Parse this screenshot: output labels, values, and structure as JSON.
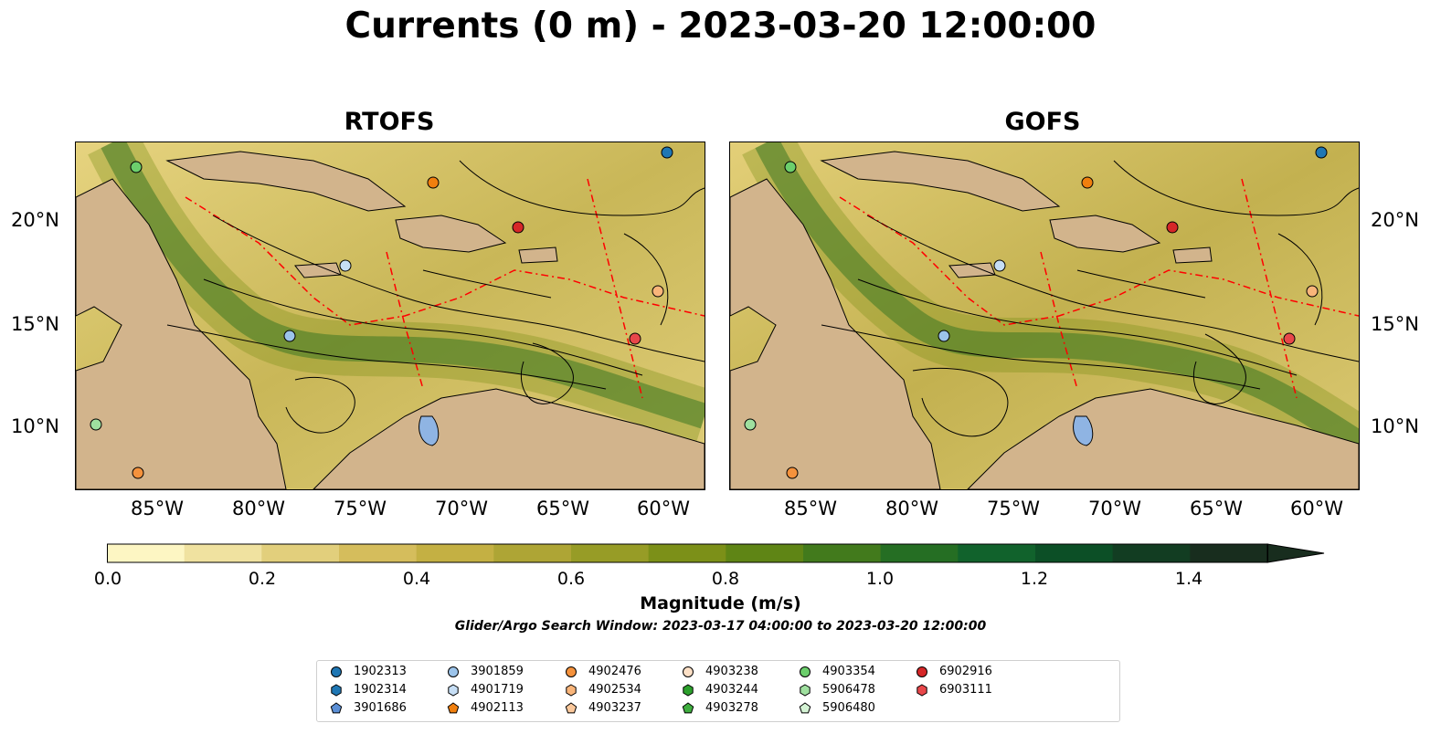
{
  "title": "Currents (0 m) - 2023-03-20 12:00:00",
  "panels": [
    {
      "title": "RTOFS"
    },
    {
      "title": "GOFS"
    }
  ],
  "lat_labels": [
    "20°N",
    "15°N",
    "10°N"
  ],
  "lon_labels": [
    "85°W",
    "80°W",
    "75°W",
    "70°W",
    "65°W",
    "60°W"
  ],
  "colorbar": {
    "label": "Magnitude (m/s)",
    "ticks": [
      "0.0",
      "0.2",
      "0.4",
      "0.6",
      "0.8",
      "1.0",
      "1.2",
      "1.4"
    ],
    "min": 0.0,
    "max": 1.5,
    "extend": "max",
    "colors": [
      "#fdf6c3",
      "#f0e2a0",
      "#e2cf7c",
      "#d5bd5c",
      "#c4b043",
      "#aea535",
      "#979c26",
      "#7c9018",
      "#5f8515",
      "#427a1c",
      "#256e23",
      "#11622c",
      "#0c4f26",
      "#123d22",
      "#182d1e"
    ]
  },
  "search_window": "Glider/Argo Search Window: 2023-03-17 04:00:00 to 2023-03-20 12:00:00",
  "legend": [
    {
      "id": "1902313",
      "marker": "circle",
      "color": "#1f77b4"
    },
    {
      "id": "1902314",
      "marker": "hexagon",
      "color": "#1f77b4"
    },
    {
      "id": "3901686",
      "marker": "pentagon",
      "color": "#5b8fd6"
    },
    {
      "id": "3901859",
      "marker": "circle",
      "color": "#9cc4eb"
    },
    {
      "id": "4901719",
      "marker": "hexagon",
      "color": "#c6def5"
    },
    {
      "id": "4902113",
      "marker": "pentagon",
      "color": "#f07f0e"
    },
    {
      "id": "4902476",
      "marker": "circle",
      "color": "#f5923c"
    },
    {
      "id": "4902534",
      "marker": "hexagon",
      "color": "#f9b57a"
    },
    {
      "id": "4903237",
      "marker": "pentagon",
      "color": "#fbc89b"
    },
    {
      "id": "4903238",
      "marker": "circle",
      "color": "#fde0c6"
    },
    {
      "id": "4903244",
      "marker": "hexagon",
      "color": "#2ca02c"
    },
    {
      "id": "4903278",
      "marker": "pentagon",
      "color": "#3fae3f"
    },
    {
      "id": "4903354",
      "marker": "circle",
      "color": "#6ccf6c"
    },
    {
      "id": "5906478",
      "marker": "hexagon",
      "color": "#9fe09f"
    },
    {
      "id": "5906480",
      "marker": "pentagon",
      "color": "#d4f3d4"
    },
    {
      "id": "6902916",
      "marker": "circle",
      "color": "#d62728"
    },
    {
      "id": "6903111",
      "marker": "hexagon",
      "color": "#e8474a"
    }
  ],
  "colors": {
    "land": "#d2b48c",
    "lake": "#8fb4e3",
    "eez": "#ff0000",
    "streamline": "#000000"
  }
}
